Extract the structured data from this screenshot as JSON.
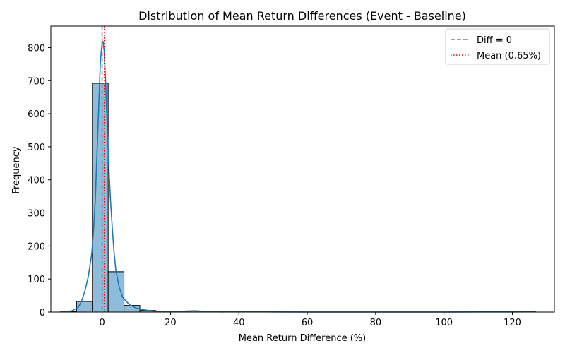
{
  "chart_data": {
    "type": "bar",
    "title": "Distribution of Mean Return Differences (Event - Baseline)",
    "xlabel": "Mean Return Difference (%)",
    "ylabel": "Frequency",
    "xlim": [
      -15.0,
      132.3
    ],
    "ylim": [
      0,
      865
    ],
    "xticks": [
      0,
      20,
      40,
      60,
      80,
      100,
      120
    ],
    "yticks": [
      0,
      100,
      200,
      300,
      400,
      500,
      600,
      700,
      800
    ],
    "grid": false,
    "legend_position": "top-right",
    "bin_width": 4.63,
    "bin_start": -12.12,
    "bin_counts": [
      2,
      32,
      692,
      122,
      20,
      5,
      1,
      1,
      3,
      1,
      0,
      1,
      0,
      0,
      0,
      0,
      0,
      0,
      0,
      0,
      0,
      0,
      0,
      0,
      0,
      0,
      0,
      0,
      0,
      1
    ],
    "kde": {
      "x": [
        -12,
        -9,
        -7,
        -6,
        -5,
        -4,
        -3,
        -2.5,
        -2,
        -1.5,
        -1,
        -0.5,
        0,
        0.3,
        0.6,
        1,
        1.5,
        2,
        2.5,
        3,
        3.5,
        4,
        5,
        6,
        8,
        10,
        12,
        15,
        20,
        25,
        27,
        30,
        35,
        40,
        42,
        45,
        50,
        60,
        70,
        80,
        90,
        100,
        110,
        120,
        126.5
      ],
      "y": [
        1,
        3,
        14,
        33,
        65,
        110,
        180,
        250,
        340,
        480,
        620,
        760,
        815,
        818,
        790,
        700,
        560,
        430,
        330,
        250,
        180,
        128,
        75,
        45,
        22,
        12,
        7,
        3,
        1,
        3,
        4,
        2,
        0.5,
        1.5,
        2,
        1,
        0.5,
        0.2,
        0.1,
        0.1,
        0.1,
        0.2,
        0.3,
        0.5,
        1
      ]
    },
    "reference_lines": [
      {
        "name": "Diff = 0",
        "x": 0,
        "color": "#808080",
        "style": "dashed"
      },
      {
        "name": "Mean (0.65%)",
        "x": 0.65,
        "color": "#ff0000",
        "style": "dotted"
      }
    ],
    "colors": {
      "bar_fill": "#8fbcdb",
      "bar_edge": "#000000",
      "kde_line": "#1f77b4"
    }
  }
}
